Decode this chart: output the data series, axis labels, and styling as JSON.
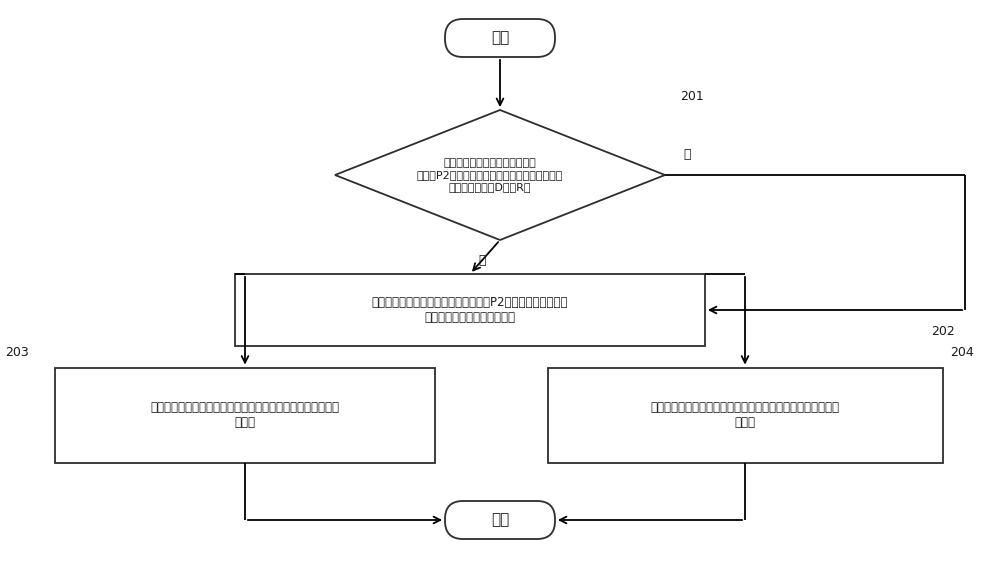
{
  "bg_color": "#ffffff",
  "line_color": "#2d2d2d",
  "text_color": "#1a1a1a",
  "font_size_text": 8.5,
  "font_size_label": 9,
  "font_size_num": 9,
  "start_text": "开始",
  "end_text": "结束",
  "diamond_line1": "在检测到发动机处于停机状态且",
  "diamond_line2": "检测到P2电机处于运行状态的情况下，确定当前",
  "diamond_line3": "档位是否切换到D档或R挡",
  "rect2_line1": "在检测到发动机处于停机状态且检测到P2电机处于运行状态的",
  "rect2_line2": "情况下，确定车辆的当前车速",
  "rect3_line1": "当上述当前车速小于第一预设车速时，控制液力变矩器处于锁",
  "rect3_line2": "止状态",
  "rect4_line1": "当上述当前车速大于第二预设车速时，控制液力变矩器处于滑",
  "rect4_line2": "摩状态",
  "label_no": "否",
  "label_yes": "是",
  "num_201": "201",
  "num_202": "202",
  "num_203": "203",
  "num_204": "204"
}
